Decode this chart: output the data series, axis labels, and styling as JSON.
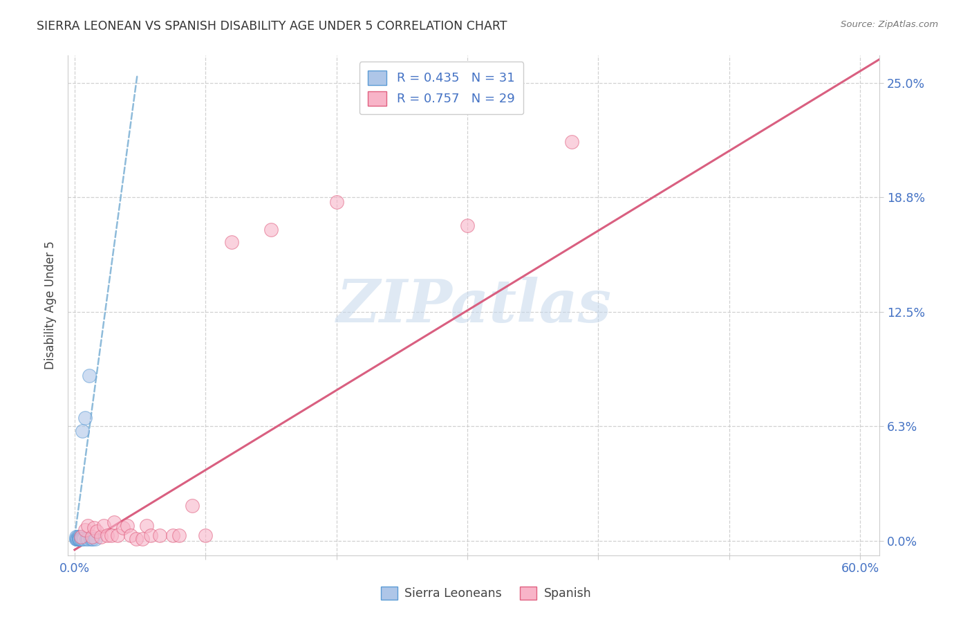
{
  "title": "SIERRA LEONEAN VS SPANISH DISABILITY AGE UNDER 5 CORRELATION CHART",
  "source": "Source: ZipAtlas.com",
  "ylabel": "Disability Age Under 5",
  "xlim": [
    -0.005,
    0.615
  ],
  "ylim": [
    -0.008,
    0.265
  ],
  "xticks": [
    0.0,
    0.1,
    0.2,
    0.3,
    0.4,
    0.5,
    0.6
  ],
  "xticklabels": [
    "0.0%",
    "",
    "",
    "",
    "",
    "",
    "60.0%"
  ],
  "yticks": [
    0.0,
    0.0625,
    0.125,
    0.1875,
    0.25
  ],
  "yticklabels": [
    "0.0%",
    "6.3%",
    "12.5%",
    "18.8%",
    "25.0%"
  ],
  "sierra_R": 0.435,
  "sierra_N": 31,
  "spanish_R": 0.757,
  "spanish_N": 29,
  "sierra_color": "#aec6e8",
  "spanish_color": "#f8b4c8",
  "sierra_edge": "#5b9bd5",
  "spanish_edge": "#e06080",
  "sierra_line_color": "#7aafd4",
  "spanish_line_color": "#d95f80",
  "axis_label_color": "#4472c4",
  "grid_color": "#cccccc",
  "title_color": "#333333",
  "sierra_x": [
    0.001,
    0.001,
    0.001,
    0.002,
    0.002,
    0.002,
    0.002,
    0.003,
    0.003,
    0.003,
    0.003,
    0.003,
    0.004,
    0.004,
    0.004,
    0.004,
    0.005,
    0.005,
    0.005,
    0.005,
    0.006,
    0.006,
    0.007,
    0.008,
    0.009,
    0.01,
    0.011,
    0.012,
    0.013,
    0.014,
    0.016
  ],
  "sierra_y": [
    0.001,
    0.001,
    0.002,
    0.001,
    0.002,
    0.001,
    0.001,
    0.001,
    0.002,
    0.001,
    0.001,
    0.001,
    0.001,
    0.002,
    0.001,
    0.001,
    0.001,
    0.002,
    0.001,
    0.001,
    0.001,
    0.06,
    0.001,
    0.067,
    0.001,
    0.001,
    0.09,
    0.001,
    0.001,
    0.001,
    0.001
  ],
  "spanish_x": [
    0.005,
    0.008,
    0.01,
    0.013,
    0.015,
    0.017,
    0.02,
    0.022,
    0.025,
    0.028,
    0.03,
    0.033,
    0.037,
    0.04,
    0.043,
    0.047,
    0.052,
    0.055,
    0.058,
    0.065,
    0.075,
    0.08,
    0.09,
    0.1,
    0.12,
    0.15,
    0.2,
    0.3,
    0.38
  ],
  "spanish_y": [
    0.002,
    0.006,
    0.008,
    0.002,
    0.007,
    0.005,
    0.002,
    0.008,
    0.003,
    0.003,
    0.01,
    0.003,
    0.007,
    0.008,
    0.003,
    0.001,
    0.001,
    0.008,
    0.003,
    0.003,
    0.003,
    0.003,
    0.019,
    0.003,
    0.163,
    0.17,
    0.185,
    0.172,
    0.218
  ],
  "sierra_trend_x": [
    0.0,
    0.048
  ],
  "sierra_trend_y": [
    0.002,
    0.255
  ],
  "spanish_trend_x": [
    0.0,
    0.615
  ],
  "spanish_trend_y": [
    -0.005,
    0.263
  ],
  "watermark_color": "#c5d8ec",
  "watermark_alpha": 0.55
}
